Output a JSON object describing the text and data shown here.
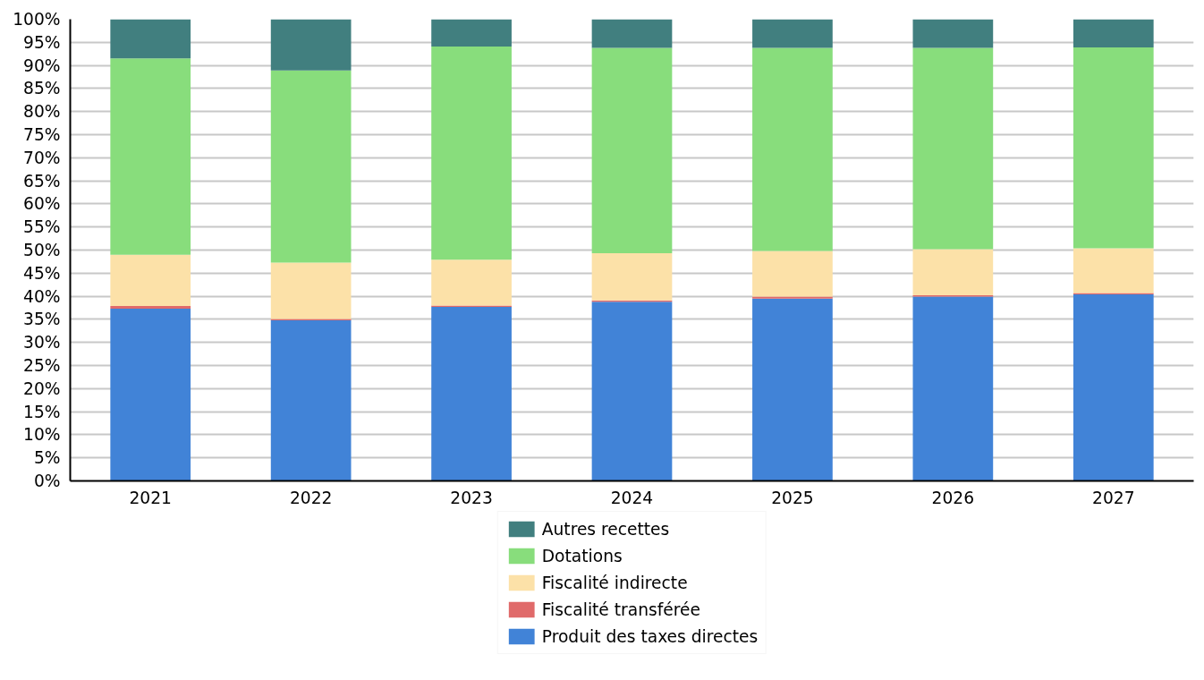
{
  "chart_data": {
    "type": "bar",
    "stacked": true,
    "categories": [
      "2021",
      "2022",
      "2023",
      "2024",
      "2025",
      "2026",
      "2027"
    ],
    "series": [
      {
        "name": "Produit des taxes directes",
        "color": "#4183d7",
        "values": [
          37.3,
          34.8,
          37.7,
          38.8,
          39.5,
          39.9,
          40.4
        ]
      },
      {
        "name": "Fiscalité transférée",
        "color": "#e06a6a",
        "values": [
          0.6,
          0.3,
          0.3,
          0.3,
          0.4,
          0.3,
          0.3
        ]
      },
      {
        "name": "Fiscalité indirecte",
        "color": "#fce1a8",
        "values": [
          11.1,
          12.2,
          9.9,
          10.2,
          9.9,
          10.0,
          9.7
        ]
      },
      {
        "name": "Dotations",
        "color": "#88dd7c",
        "values": [
          42.5,
          41.6,
          46.2,
          44.5,
          44.0,
          43.6,
          43.5
        ]
      },
      {
        "name": "Autres recettes",
        "color": "#417f7f",
        "values": [
          8.5,
          11.1,
          5.9,
          6.2,
          6.2,
          6.2,
          6.1
        ]
      }
    ],
    "ylim": [
      0,
      100
    ],
    "yticks": [
      {
        "value": 0,
        "label": "0%"
      },
      {
        "value": 5,
        "label": "5%"
      },
      {
        "value": 10,
        "label": "10%"
      },
      {
        "value": 15,
        "label": "15%"
      },
      {
        "value": 20,
        "label": "20%"
      },
      {
        "value": 25,
        "label": "25%"
      },
      {
        "value": 30,
        "label": "30%"
      },
      {
        "value": 35,
        "label": "35%"
      },
      {
        "value": 40,
        "label": "40%"
      },
      {
        "value": 45,
        "label": "45%"
      },
      {
        "value": 50,
        "label": "50%"
      },
      {
        "value": 55,
        "label": "55%"
      },
      {
        "value": 60,
        "label": "60%"
      },
      {
        "value": 65,
        "label": "65%"
      },
      {
        "value": 70,
        "label": "70%"
      },
      {
        "value": 75,
        "label": "75%"
      },
      {
        "value": 80,
        "label": "80%"
      },
      {
        "value": 85,
        "label": "85%"
      },
      {
        "value": 90,
        "label": "90%"
      },
      {
        "value": 95,
        "label": "95%"
      },
      {
        "value": 100,
        "label": "100%"
      }
    ],
    "grid": "y",
    "legend": "bottom"
  }
}
